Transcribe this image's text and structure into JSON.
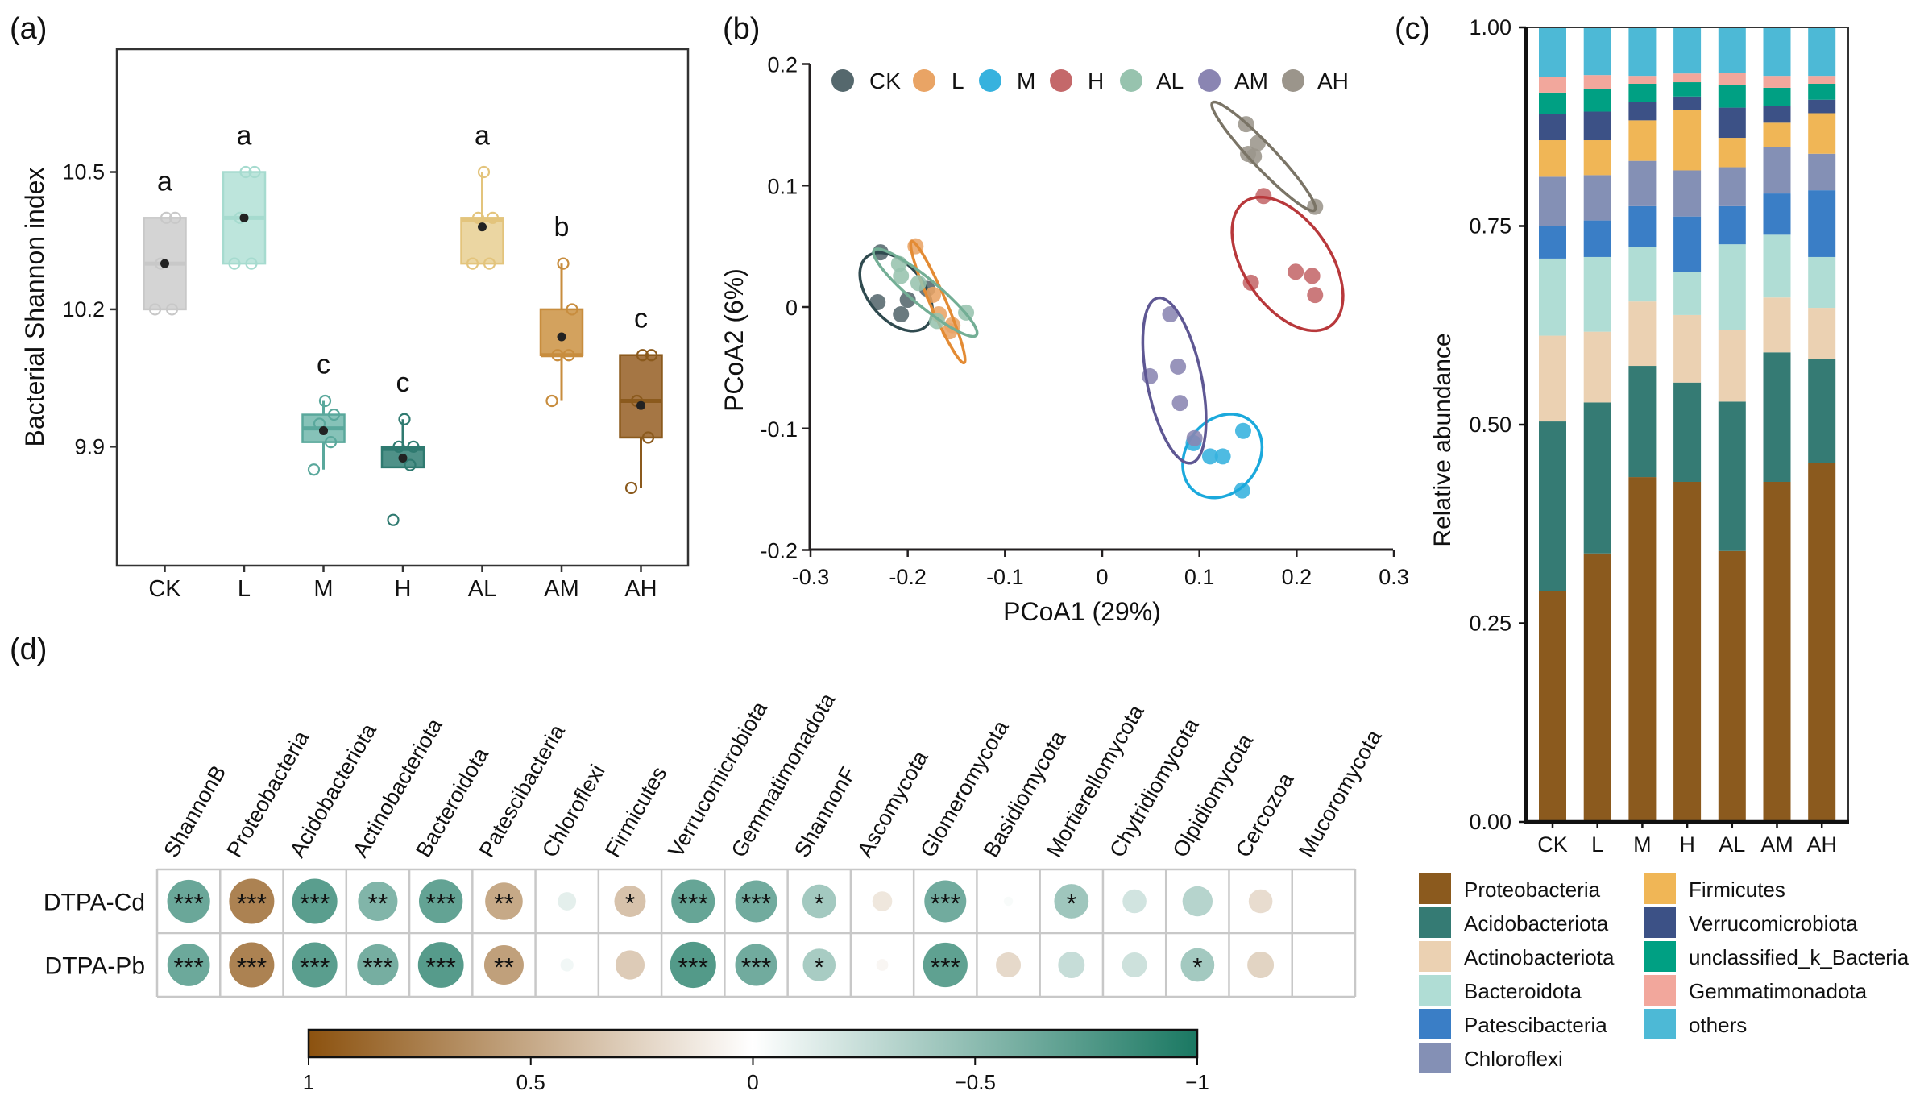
{
  "panels": {
    "a": "(a)",
    "b": "(b)",
    "c": "(c)",
    "d": "(d)"
  },
  "chart_data": [
    {
      "type": "box",
      "title": "",
      "xlabel": "",
      "ylabel": "Bacterial Shannon index",
      "ylim": [
        9.64,
        10.77
      ],
      "yticks": [
        9.9,
        10.2,
        10.5
      ],
      "ytick_labels": [
        "9.9",
        "10.2",
        "10.5"
      ],
      "grid": false,
      "groups": [
        {
          "name": "CK",
          "q1": 10.2,
          "median": 10.3,
          "q3": 10.4,
          "whisker_low": 10.2,
          "whisker_high": 10.4,
          "mean": 10.3,
          "points": [
            10.2,
            10.2,
            10.3,
            10.4,
            10.4
          ],
          "letter": "a",
          "fill": "#d4d4d4",
          "stroke": "#c8c8c8"
        },
        {
          "name": "L",
          "q1": 10.3,
          "median": 10.4,
          "q3": 10.5,
          "whisker_low": 10.3,
          "whisker_high": 10.5,
          "mean": 10.4,
          "points": [
            10.3,
            10.3,
            10.4,
            10.5,
            10.5
          ],
          "letter": "a",
          "fill": "#bde5dc",
          "stroke": "#a6dbcf"
        },
        {
          "name": "M",
          "q1": 9.91,
          "median": 9.94,
          "q3": 9.97,
          "whisker_low": 9.85,
          "whisker_high": 10.0,
          "mean": 9.935,
          "points": [
            9.85,
            9.91,
            9.95,
            9.97,
            10.0
          ],
          "letter": "c",
          "fill": "#86c2b8",
          "stroke": "#5aa89c"
        },
        {
          "name": "H",
          "q1": 9.855,
          "median": 9.895,
          "q3": 9.9,
          "whisker_low": 9.855,
          "whisker_high": 9.96,
          "mean": 9.875,
          "points": [
            9.74,
            9.86,
            9.9,
            9.9,
            9.96
          ],
          "letter": "c",
          "fill": "#4f9188",
          "stroke": "#2f7a70"
        },
        {
          "name": "AL",
          "q1": 10.3,
          "median": 10.395,
          "q3": 10.4,
          "whisker_low": 10.3,
          "whisker_high": 10.5,
          "mean": 10.38,
          "points": [
            10.3,
            10.3,
            10.4,
            10.4,
            10.5
          ],
          "letter": "a",
          "fill": "#ebd6a2",
          "stroke": "#e3c47c"
        },
        {
          "name": "AM",
          "q1": 10.1,
          "median": 10.1,
          "q3": 10.2,
          "whisker_low": 10.0,
          "whisker_high": 10.3,
          "mean": 10.14,
          "points": [
            10.0,
            10.1,
            10.1,
            10.2,
            10.3
          ],
          "letter": "b",
          "fill": "#d3a25e",
          "stroke": "#c88d3e"
        },
        {
          "name": "AH",
          "q1": 9.92,
          "median": 10.0,
          "q3": 10.1,
          "whisker_low": 9.81,
          "whisker_high": 10.1,
          "mean": 9.99,
          "points": [
            9.81,
            9.92,
            10.0,
            10.1,
            10.1
          ],
          "letter": "c",
          "fill": "#a57644",
          "stroke": "#8b5a1d"
        }
      ]
    },
    {
      "type": "scatter",
      "title": "",
      "xlabel": "PCoA1 (29%)",
      "ylabel": "PCoA2 (6%)",
      "xlim": [
        -0.3,
        0.3
      ],
      "ylim": [
        -0.2,
        0.2
      ],
      "xticks": [
        -0.3,
        -0.2,
        -0.1,
        0,
        0.1,
        0.2,
        0.3
      ],
      "xtick_labels": [
        "-0.3",
        "-0.2",
        "-0.1",
        "0",
        "0.1",
        "0.2",
        "0.3"
      ],
      "yticks": [
        0.2,
        0.1,
        0,
        -0.1,
        -0.2
      ],
      "ytick_labels": [
        "0.2",
        "0.1",
        "0",
        "-0.1",
        "-0.2"
      ],
      "grid": false,
      "legend_position": "top",
      "series": [
        {
          "name": "CK",
          "color": "#55686d",
          "ellipse_color": "#2f4a4f",
          "points": [
            [
              -0.228,
              0.045
            ],
            [
              -0.231,
              0.004
            ],
            [
              -0.2,
              0.006
            ],
            [
              -0.207,
              -0.006
            ],
            [
              -0.18,
              0.015
            ]
          ],
          "ellipse": {
            "center": [
              -0.212,
              0.0125
            ],
            "axis1": [
              0.028,
              -0.03
            ],
            "axis2": [
              -0.0246,
              -0.0118
            ]
          }
        },
        {
          "name": "L",
          "color": "#e9a465",
          "ellipse_color": "#e38b34",
          "points": [
            [
              -0.192,
              0.05
            ],
            [
              -0.174,
              0.01
            ],
            [
              -0.168,
              -0.006
            ],
            [
              -0.157,
              -0.02
            ],
            [
              -0.154,
              -0.015
            ]
          ],
          "ellipse": {
            "center": [
              -0.169,
              0.004
            ],
            "axis1": [
              0.0269,
              -0.05
            ],
            "axis2": [
              -0.0077,
              -0.0021
            ]
          }
        },
        {
          "name": "M",
          "color": "#36b2de",
          "ellipse_color": "#1ba9dc",
          "points": [
            [
              0.094,
              -0.112
            ],
            [
              0.111,
              -0.123
            ],
            [
              0.124,
              -0.123
            ],
            [
              0.145,
              -0.102
            ],
            [
              0.144,
              -0.151
            ]
          ],
          "ellipse": {
            "center": [
              0.1236,
              -0.1226
            ],
            "axis1": [
              0.0406,
              0.004
            ],
            "axis2": [
              -0.004,
              -0.0342
            ]
          }
        },
        {
          "name": "H",
          "color": "#c4686a",
          "ellipse_color": "#b8383b",
          "points": [
            [
              0.166,
              0.0914
            ],
            [
              0.153,
              0.02
            ],
            [
              0.199,
              0.029
            ],
            [
              0.216,
              0.0256
            ],
            [
              0.219,
              0.0099
            ]
          ],
          "ellipse": {
            "center": [
              0.1906,
              0.0355
            ],
            "axis1": [
              0.041,
              -0.0526
            ],
            "axis2": [
              -0.0397,
              -0.0161
            ]
          }
        },
        {
          "name": "AL",
          "color": "#97c3ae",
          "ellipse_color": "#73ae95",
          "points": [
            [
              -0.209,
              0.0355
            ],
            [
              -0.207,
              0.0256
            ],
            [
              -0.189,
              0.0197
            ],
            [
              -0.17,
              -0.0115
            ],
            [
              -0.14,
              -0.0046
            ]
          ],
          "ellipse": {
            "center": [
              -0.182,
              0.0118
            ],
            "axis1": [
              0.0524,
              -0.0352
            ],
            "axis2": [
              -0.01,
              -0.0076
            ]
          }
        },
        {
          "name": "AM",
          "color": "#8a85b2",
          "ellipse_color": "#5e5793",
          "points": [
            [
              0.07,
              -0.006
            ],
            [
              0.078,
              -0.049
            ],
            [
              0.049,
              -0.057
            ],
            [
              0.08,
              -0.079
            ],
            [
              0.095,
              -0.108
            ]
          ],
          "ellipse": {
            "center": [
              0.0743,
              -0.0605
            ],
            "axis1": [
              0.0169,
              -0.068
            ],
            "axis2": [
              -0.0278,
              -0.0036
            ]
          }
        },
        {
          "name": "AH",
          "color": "#9b958b",
          "ellipse_color": "#7a7466",
          "points": [
            [
              0.148,
              0.1505
            ],
            [
              0.16,
              0.135
            ],
            [
              0.15,
              0.126
            ],
            [
              0.156,
              0.124
            ],
            [
              0.219,
              0.0825
            ]
          ],
          "ellipse": {
            "center": [
              0.166,
              0.124
            ],
            "axis1": [
              0.0524,
              -0.0444
            ],
            "axis2": [
              -0.0096,
              -0.0059
            ]
          }
        }
      ]
    },
    {
      "type": "bar",
      "stacked": true,
      "title": "",
      "xlabel": "",
      "ylabel": "Relative abundance",
      "ylim": [
        0,
        1
      ],
      "yticks": [
        0,
        0.25,
        0.5,
        0.75,
        1
      ],
      "ytick_labels": [
        "0.00",
        "0.25",
        "0.50",
        "0.75",
        "1.00"
      ],
      "categories": [
        "CK",
        "L",
        "M",
        "H",
        "AL",
        "AM",
        "AH"
      ],
      "legend_position": "bottom",
      "series": [
        {
          "name": "Proteobacteria",
          "color": "#8b5a1e",
          "values": [
            0.291,
            0.338,
            0.434,
            0.428,
            0.341,
            0.428,
            0.452
          ]
        },
        {
          "name": "Acidobacteriota",
          "color": "#357b74",
          "values": [
            0.213,
            0.19,
            0.14,
            0.125,
            0.188,
            0.163,
            0.131
          ]
        },
        {
          "name": "Actinobacteriota",
          "color": "#ebd1b2",
          "values": [
            0.108,
            0.089,
            0.081,
            0.085,
            0.09,
            0.069,
            0.064
          ]
        },
        {
          "name": "Bacteroidota",
          "color": "#b0ddd5",
          "values": [
            0.097,
            0.094,
            0.069,
            0.054,
            0.108,
            0.079,
            0.064
          ]
        },
        {
          "name": "Patescibacteria",
          "color": "#3a7ec6",
          "values": [
            0.041,
            0.046,
            0.051,
            0.07,
            0.048,
            0.052,
            0.084
          ]
        },
        {
          "name": "Chloroflexi",
          "color": "#8490b5",
          "values": [
            0.062,
            0.057,
            0.057,
            0.058,
            0.049,
            0.058,
            0.046
          ]
        },
        {
          "name": "Firmicutes",
          "color": "#f0b656",
          "values": [
            0.046,
            0.044,
            0.051,
            0.076,
            0.037,
            0.031,
            0.051
          ]
        },
        {
          "name": "Verrucomicrobiota",
          "color": "#3c5186",
          "values": [
            0.033,
            0.036,
            0.023,
            0.017,
            0.038,
            0.021,
            0.017
          ]
        },
        {
          "name": "unclassified_k_Bacteria",
          "color": "#00a083",
          "values": [
            0.027,
            0.028,
            0.023,
            0.018,
            0.028,
            0.023,
            0.02
          ]
        },
        {
          "name": "Gemmatimonadota",
          "color": "#f2a79c",
          "values": [
            0.02,
            0.018,
            0.01,
            0.011,
            0.016,
            0.015,
            0.01
          ]
        },
        {
          "name": "others",
          "color": "#4db9d6",
          "values": [
            0.062,
            0.06,
            0.061,
            0.058,
            0.057,
            0.061,
            0.061
          ]
        }
      ]
    },
    {
      "type": "heatmap",
      "title": "",
      "rows": [
        "DTPA-Cd",
        "DTPA-Pb"
      ],
      "columns": [
        "ShannonB",
        "Proteobacteria",
        "Acidobacteriota",
        "Actinobacteriota",
        "Bacteroidota",
        "Patescibacteria",
        "Chloroflexi",
        "Firmicutes",
        "Verrucomicrobiota",
        "Gemmatimonadota",
        "ShannonF",
        "Ascomycota",
        "Glomeromycota",
        "Basidiomycota",
        "Mortierellomycota",
        "Chytridiomycota",
        "Olpidiomycota",
        "Cercozoa",
        "Mucoromycota"
      ],
      "values": [
        [
          -0.65,
          0.72,
          -0.72,
          -0.55,
          -0.68,
          0.5,
          -0.12,
          0.35,
          -0.67,
          -0.62,
          -0.4,
          0.14,
          -0.62,
          -0.03,
          -0.42,
          -0.2,
          -0.32,
          0.2,
          null
        ],
        [
          -0.64,
          0.72,
          -0.72,
          -0.6,
          -0.74,
          0.55,
          -0.06,
          0.3,
          -0.75,
          -0.62,
          -0.38,
          0.05,
          -0.7,
          0.22,
          -0.25,
          -0.22,
          -0.4,
          0.25,
          null
        ]
      ],
      "significance": [
        [
          "***",
          "***",
          "***",
          "**",
          "***",
          "**",
          "",
          "*",
          "***",
          "***",
          "*",
          "",
          "***",
          "",
          "*",
          "",
          "",
          "",
          ""
        ],
        [
          "***",
          "***",
          "***",
          "***",
          "***",
          "**",
          "",
          "",
          "***",
          "***",
          "*",
          "",
          "***",
          "",
          "",
          "",
          "*",
          "",
          ""
        ]
      ],
      "colorbar": {
        "range": [
          1,
          -1
        ],
        "ticks": [
          1,
          0.5,
          0,
          -0.5,
          -1
        ],
        "tick_labels": [
          "1",
          "0.5",
          "0",
          "−0.5",
          "−1"
        ],
        "positive_color": "#8c520f",
        "zero_color": "#ffffff",
        "negative_color": "#1a7862"
      }
    }
  ]
}
